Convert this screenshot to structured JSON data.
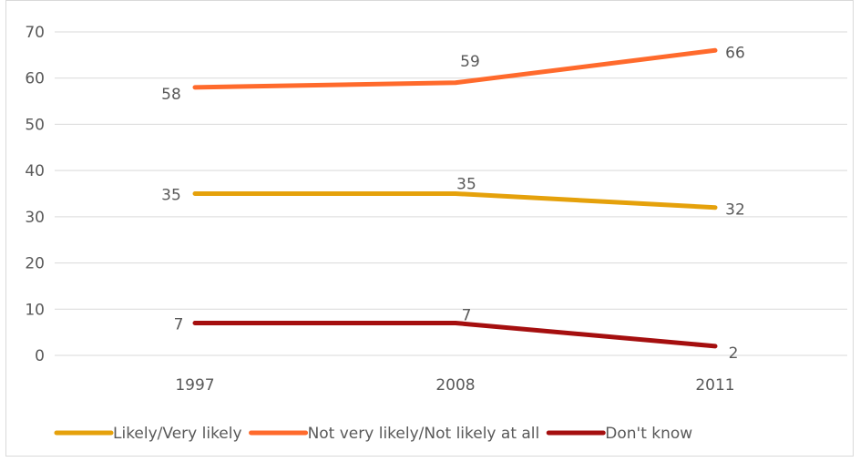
{
  "chart_data": {
    "type": "line",
    "title": "",
    "xlabel": "",
    "ylabel": "",
    "categories": [
      "1997",
      "2008",
      "2011"
    ],
    "ylim": [
      0,
      70
    ],
    "yticks": [
      0,
      10,
      20,
      30,
      40,
      50,
      60,
      70
    ],
    "grid": true,
    "legend_position": "bottom",
    "series": [
      {
        "name": "Likely/Very likely",
        "values": [
          35,
          35,
          32
        ],
        "color": "#E5A10B"
      },
      {
        "name": "Not very likely/Not likely at all",
        "values": [
          58,
          59,
          66
        ],
        "color": "#FF6A2C"
      },
      {
        "name": "Don't know",
        "values": [
          7,
          7,
          2
        ],
        "color": "#A50F0F"
      }
    ]
  }
}
